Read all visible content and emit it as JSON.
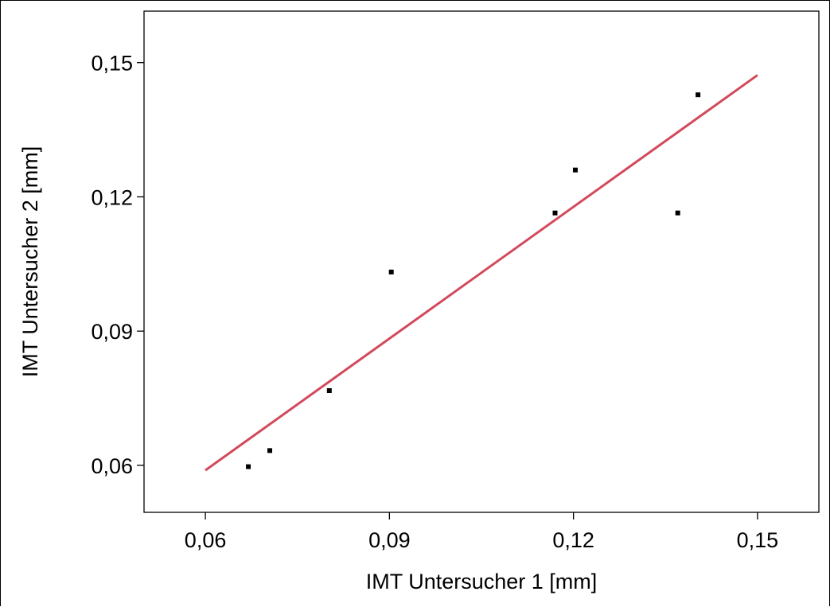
{
  "chart_data": {
    "type": "scatter",
    "xlabel": "IMT Untersucher 1 [mm]",
    "ylabel": "IMT Untersucher 2 [mm]",
    "xlim": [
      0.05,
      0.16
    ],
    "ylim": [
      0.0495,
      0.1615
    ],
    "xticks": [
      {
        "value": 0.06,
        "label": "0,06"
      },
      {
        "value": 0.09,
        "label": "0,09"
      },
      {
        "value": 0.12,
        "label": "0,12"
      },
      {
        "value": 0.15,
        "label": "0,15"
      }
    ],
    "yticks": [
      {
        "value": 0.06,
        "label": "0,06"
      },
      {
        "value": 0.09,
        "label": "0,09"
      },
      {
        "value": 0.12,
        "label": "0,12"
      },
      {
        "value": 0.15,
        "label": "0,15"
      }
    ],
    "grid": false,
    "points": [
      {
        "x": 0.067,
        "y": 0.0597
      },
      {
        "x": 0.0705,
        "y": 0.0633
      },
      {
        "x": 0.0802,
        "y": 0.0767
      },
      {
        "x": 0.0903,
        "y": 0.1032
      },
      {
        "x": 0.117,
        "y": 0.1164
      },
      {
        "x": 0.1203,
        "y": 0.126
      },
      {
        "x": 0.137,
        "y": 0.1164
      },
      {
        "x": 0.1403,
        "y": 0.1428
      }
    ],
    "fit_line": {
      "x": [
        0.06,
        0.15
      ],
      "y": [
        0.0589,
        0.1472
      ],
      "color": "#d24a5c"
    },
    "point_color": "#000000"
  }
}
